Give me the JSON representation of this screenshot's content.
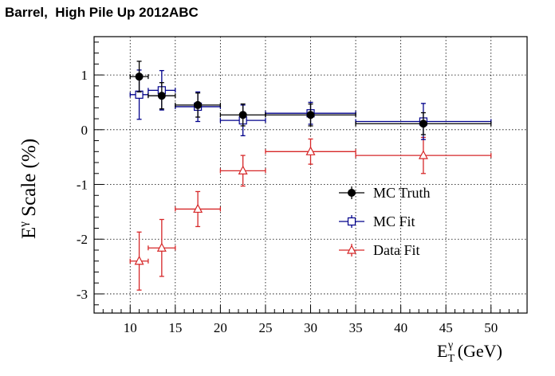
{
  "chart_data": {
    "type": "scatter",
    "title": "Barrel,  High Pile Up 2012ABC",
    "xlabel": {
      "main": "E",
      "sub": "T",
      "sup": "γ",
      "rest": " (GeV)"
    },
    "ylabel": {
      "main": "E",
      "sup": "γ",
      "rest": " Scale (%)"
    },
    "xlim": [
      6,
      54
    ],
    "ylim": [
      -3.35,
      1.7
    ],
    "xticks": [
      10,
      15,
      20,
      25,
      30,
      35,
      40,
      45,
      50
    ],
    "yticks": [
      -3,
      -2,
      -1,
      0,
      1
    ],
    "grid": true,
    "legend_position": "center-right",
    "series": [
      {
        "name": "MC Truth",
        "marker": "filled-circle",
        "color": "#000000",
        "points": [
          {
            "x": 11,
            "xerr": [
              1,
              1
            ],
            "y": 0.97,
            "yerr": 0.28
          },
          {
            "x": 13.5,
            "xerr": [
              1.5,
              1.5
            ],
            "y": 0.62,
            "yerr": 0.24
          },
          {
            "x": 17.5,
            "xerr": [
              2.5,
              2.5
            ],
            "y": 0.45,
            "yerr": 0.22
          },
          {
            "x": 22.5,
            "xerr": [
              2.5,
              2.5
            ],
            "y": 0.27,
            "yerr": 0.2
          },
          {
            "x": 30,
            "xerr": [
              5,
              5
            ],
            "y": 0.27,
            "yerr": 0.2
          },
          {
            "x": 42.5,
            "xerr": [
              7.5,
              7.5
            ],
            "y": 0.11,
            "yerr": 0.2
          }
        ]
      },
      {
        "name": "MC Fit",
        "marker": "open-square",
        "color": "#00008b",
        "points": [
          {
            "x": 11,
            "xerr": [
              1,
              1
            ],
            "y": 0.64,
            "yerr": 0.45
          },
          {
            "x": 13.5,
            "xerr": [
              1.5,
              1.5
            ],
            "y": 0.72,
            "yerr": 0.36
          },
          {
            "x": 17.5,
            "xerr": [
              2.5,
              2.5
            ],
            "y": 0.42,
            "yerr": 0.27
          },
          {
            "x": 22.5,
            "xerr": [
              2.5,
              2.5
            ],
            "y": 0.17,
            "yerr": 0.28
          },
          {
            "x": 30,
            "xerr": [
              5,
              5
            ],
            "y": 0.3,
            "yerr": 0.2
          },
          {
            "x": 42.5,
            "xerr": [
              7.5,
              7.5
            ],
            "y": 0.15,
            "yerr": 0.33
          }
        ]
      },
      {
        "name": "Data Fit",
        "marker": "open-triangle",
        "color": "#d62728",
        "points": [
          {
            "x": 11,
            "xerr": [
              1,
              1
            ],
            "y": -2.4,
            "yerr": 0.53
          },
          {
            "x": 13.5,
            "xerr": [
              1.5,
              1.5
            ],
            "y": -2.16,
            "yerr": 0.52
          },
          {
            "x": 17.5,
            "xerr": [
              2.5,
              2.5
            ],
            "y": -1.45,
            "yerr": 0.32
          },
          {
            "x": 22.5,
            "xerr": [
              2.5,
              2.5
            ],
            "y": -0.75,
            "yerr": 0.28
          },
          {
            "x": 30,
            "xerr": [
              5,
              5
            ],
            "y": -0.4,
            "yerr": 0.23
          },
          {
            "x": 42.5,
            "xerr": [
              7.5,
              7.5
            ],
            "y": -0.47,
            "yerr": 0.33
          }
        ]
      }
    ]
  }
}
